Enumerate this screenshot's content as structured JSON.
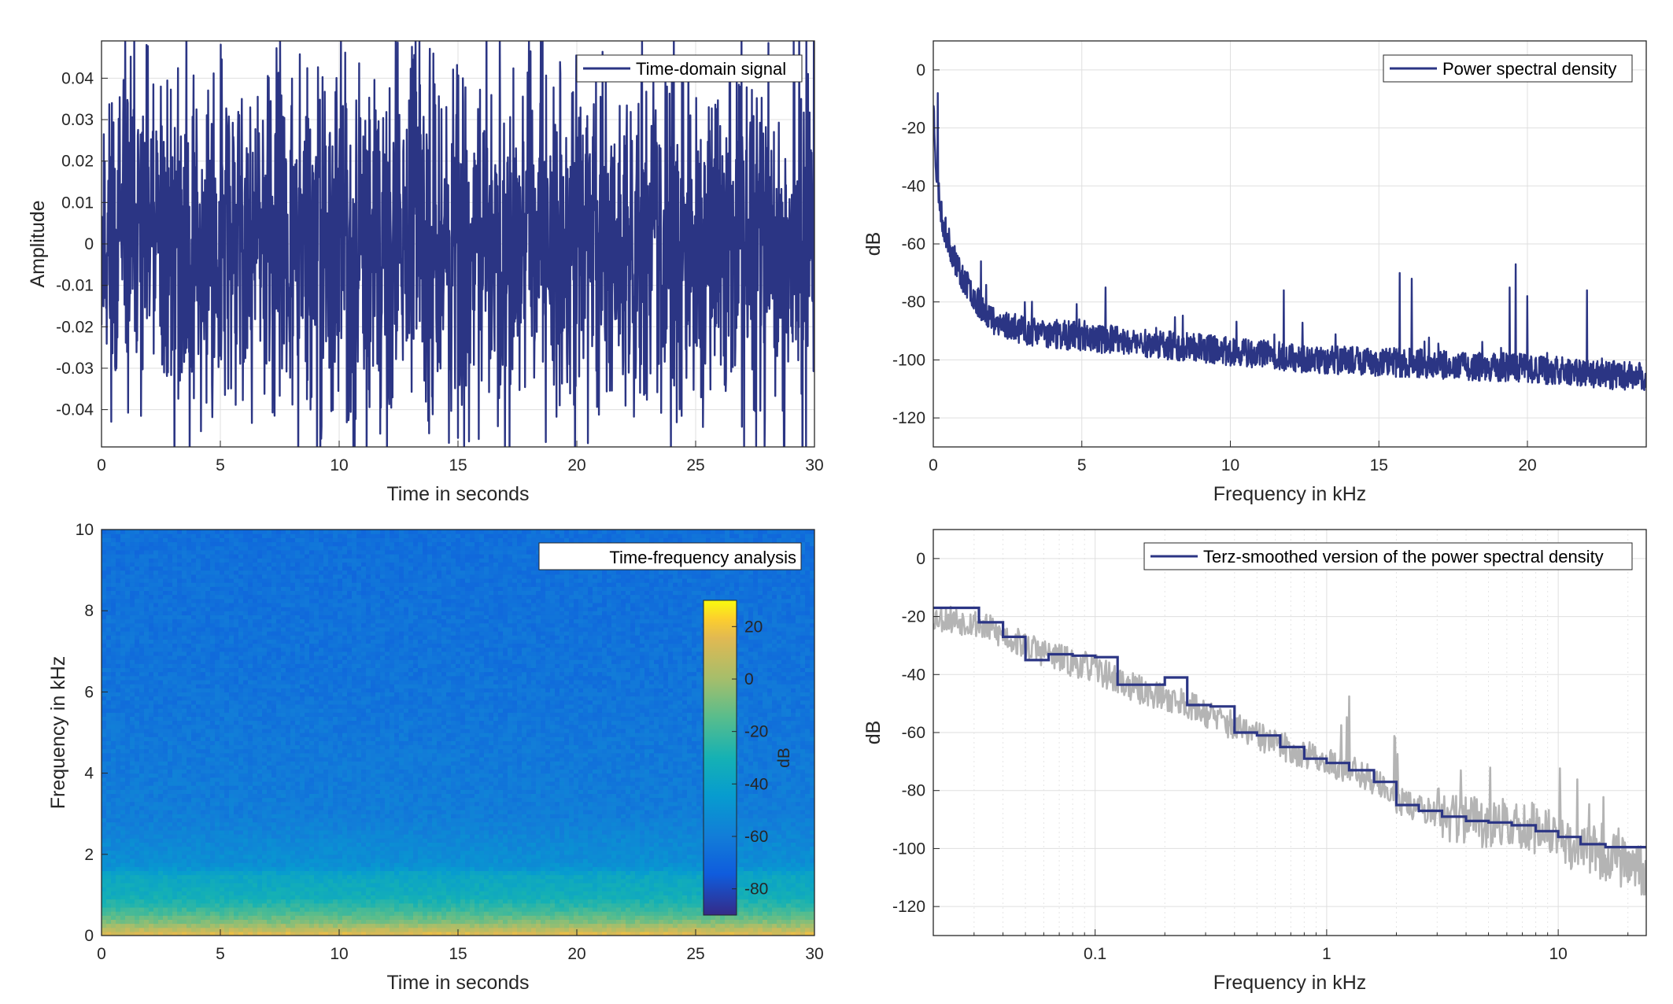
{
  "colors": {
    "signal": "#2b3584",
    "smoothed_raw": "#b4b4b4",
    "grid": "#dfdfdf",
    "axes": "#262626"
  },
  "chart_data": [
    {
      "id": "time",
      "type": "line",
      "legend": "Time-domain signal",
      "legend_placement": "top-right",
      "xlabel": "Time in seconds",
      "ylabel": "Amplitude",
      "xlim": [
        0,
        30
      ],
      "ylim": [
        -0.049,
        0.049
      ],
      "xticks": [
        0,
        5,
        10,
        15,
        20,
        25,
        30
      ],
      "xtick_labels": [
        "0",
        "5",
        "10",
        "15",
        "20",
        "25",
        "30"
      ],
      "yticks": [
        -0.04,
        -0.03,
        -0.02,
        -0.01,
        0,
        0.01,
        0.02,
        0.03,
        0.04
      ],
      "ytick_labels": [
        "-0.04",
        "-0.03",
        "-0.02",
        "-0.01",
        "0",
        "0.01",
        "0.02",
        "0.03",
        "0.04"
      ],
      "grid": true,
      "peaks": [
        [
          2.5,
          0.038
        ],
        [
          23.8,
          0.038
        ],
        [
          1.1,
          0.034
        ],
        [
          8.8,
          -0.04
        ],
        [
          3.3,
          -0.033
        ],
        [
          16.0,
          -0.033
        ],
        [
          20.1,
          -0.032
        ]
      ],
      "typical_amplitude": 0.02
    },
    {
      "id": "psd",
      "type": "line",
      "legend": "Power spectral density",
      "legend_placement": "top-right",
      "xlabel": "Frequency in kHz",
      "ylabel": "dB",
      "xlim": [
        0,
        24
      ],
      "ylim": [
        -130,
        10
      ],
      "xticks": [
        0,
        5,
        10,
        15,
        20
      ],
      "xtick_labels": [
        "0",
        "5",
        "10",
        "15",
        "20"
      ],
      "yticks": [
        0,
        -20,
        -40,
        -60,
        -80,
        -100,
        -120
      ],
      "ytick_labels": [
        "0",
        "-20",
        "-40",
        "-60",
        "-80",
        "-100",
        "-120"
      ],
      "grid": true,
      "envelope": [
        [
          0,
          -10
        ],
        [
          0.1,
          -35
        ],
        [
          0.3,
          -52
        ],
        [
          0.6,
          -62
        ],
        [
          1.0,
          -72
        ],
        [
          1.5,
          -80
        ],
        [
          2,
          -86
        ],
        [
          3,
          -90
        ],
        [
          5,
          -92
        ],
        [
          7,
          -94
        ],
        [
          10,
          -97
        ],
        [
          13,
          -100
        ],
        [
          16,
          -101
        ],
        [
          20,
          -103
        ],
        [
          24,
          -106
        ]
      ],
      "spikes": [
        [
          0.15,
          -8
        ],
        [
          1.6,
          -66
        ],
        [
          5.8,
          -75
        ],
        [
          11.8,
          -76
        ],
        [
          15.7,
          -70
        ],
        [
          16.1,
          -72
        ],
        [
          19.4,
          -75
        ],
        [
          19.6,
          -67
        ],
        [
          20.0,
          -78
        ],
        [
          22.0,
          -76
        ]
      ]
    },
    {
      "id": "spectrogram",
      "type": "heatmap",
      "legend": "Time-frequency analysis",
      "legend_placement": "top-right",
      "xlabel": "Time in seconds",
      "ylabel": "Frequency in kHz",
      "xlim": [
        0,
        30
      ],
      "ylim": [
        0,
        10
      ],
      "xticks": [
        0,
        5,
        10,
        15,
        20,
        25,
        30
      ],
      "xtick_labels": [
        "0",
        "5",
        "10",
        "15",
        "20",
        "25",
        "30"
      ],
      "yticks": [
        0,
        2,
        4,
        6,
        8,
        10
      ],
      "ytick_labels": [
        "0",
        "2",
        "4",
        "6",
        "8",
        "10"
      ],
      "colorbar": {
        "label": "dB",
        "range": [
          -90,
          30
        ],
        "ticks": [
          20,
          0,
          -20,
          -40,
          -60,
          -80
        ],
        "tick_labels": [
          "20",
          "0",
          "-20",
          "-40",
          "-60",
          "-80"
        ],
        "colormap": "parula"
      },
      "level_profile": [
        [
          0,
          18
        ],
        [
          0.1,
          10
        ],
        [
          0.3,
          -5
        ],
        [
          0.6,
          -20
        ],
        [
          1.0,
          -33
        ],
        [
          1.5,
          -38
        ],
        [
          1.7,
          -50
        ],
        [
          3,
          -60
        ],
        [
          6,
          -64
        ],
        [
          10,
          -66
        ]
      ]
    },
    {
      "id": "terz",
      "type": "line",
      "legend": "Terz-smoothed version of the power spectral density",
      "legend_placement": "top-right",
      "xlabel": "Frequency in kHz",
      "ylabel": "dB",
      "xscale": "log",
      "xlim": [
        0.02,
        24
      ],
      "ylim": [
        -130,
        10
      ],
      "xticks": [
        0.1,
        1,
        10
      ],
      "xtick_labels": [
        "0.1",
        "1",
        "10"
      ],
      "yticks": [
        0,
        -20,
        -40,
        -60,
        -80,
        -100,
        -120
      ],
      "ytick_labels": [
        "0",
        "-20",
        "-40",
        "-60",
        "-80",
        "-100",
        "-120"
      ],
      "grid": true,
      "smoothed_steps": [
        [
          0.02,
          -17
        ],
        [
          0.0315,
          -17
        ],
        [
          0.0315,
          -22
        ],
        [
          0.04,
          -22
        ],
        [
          0.04,
          -27
        ],
        [
          0.05,
          -27
        ],
        [
          0.05,
          -35
        ],
        [
          0.063,
          -35
        ],
        [
          0.063,
          -33
        ],
        [
          0.08,
          -33
        ],
        [
          0.08,
          -33.5
        ],
        [
          0.1,
          -33.5
        ],
        [
          0.1,
          -34
        ],
        [
          0.125,
          -34
        ],
        [
          0.125,
          -43.5
        ],
        [
          0.16,
          -43.5
        ],
        [
          0.16,
          -43.5
        ],
        [
          0.2,
          -43.5
        ],
        [
          0.2,
          -41
        ],
        [
          0.25,
          -41
        ],
        [
          0.25,
          -50.5
        ],
        [
          0.315,
          -50.5
        ],
        [
          0.315,
          -51
        ],
        [
          0.4,
          -51
        ],
        [
          0.4,
          -60
        ],
        [
          0.5,
          -60
        ],
        [
          0.5,
          -61
        ],
        [
          0.63,
          -61
        ],
        [
          0.63,
          -65
        ],
        [
          0.8,
          -65
        ],
        [
          0.8,
          -69
        ],
        [
          1.0,
          -69
        ],
        [
          1.0,
          -70.5
        ],
        [
          1.25,
          -70.5
        ],
        [
          1.25,
          -73
        ],
        [
          1.6,
          -73
        ],
        [
          1.6,
          -77
        ],
        [
          2.0,
          -77
        ],
        [
          2.0,
          -85
        ],
        [
          2.5,
          -85
        ],
        [
          2.5,
          -87
        ],
        [
          3.15,
          -87
        ],
        [
          3.15,
          -89
        ],
        [
          4.0,
          -89
        ],
        [
          4.0,
          -90.5
        ],
        [
          5.0,
          -90.5
        ],
        [
          5.0,
          -91
        ],
        [
          6.3,
          -91
        ],
        [
          6.3,
          -92
        ],
        [
          8.0,
          -92
        ],
        [
          8.0,
          -94
        ],
        [
          10,
          -94
        ],
        [
          10,
          -96
        ],
        [
          12.5,
          -96
        ],
        [
          12.5,
          -98.5
        ],
        [
          16,
          -98.5
        ],
        [
          16,
          -99.5
        ],
        [
          24,
          -99.5
        ]
      ],
      "raw_envelope": [
        [
          0.02,
          -20
        ],
        [
          0.03,
          -22
        ],
        [
          0.05,
          -30
        ],
        [
          0.08,
          -36
        ],
        [
          0.1,
          -38
        ],
        [
          0.15,
          -45
        ],
        [
          0.25,
          -50
        ],
        [
          0.4,
          -58
        ],
        [
          0.7,
          -66
        ],
        [
          1.0,
          -70
        ],
        [
          1.5,
          -75
        ],
        [
          2.0,
          -83
        ],
        [
          3,
          -88
        ],
        [
          5,
          -91
        ],
        [
          8,
          -93
        ],
        [
          12,
          -99
        ],
        [
          18,
          -104
        ],
        [
          24,
          -108
        ]
      ]
    }
  ]
}
